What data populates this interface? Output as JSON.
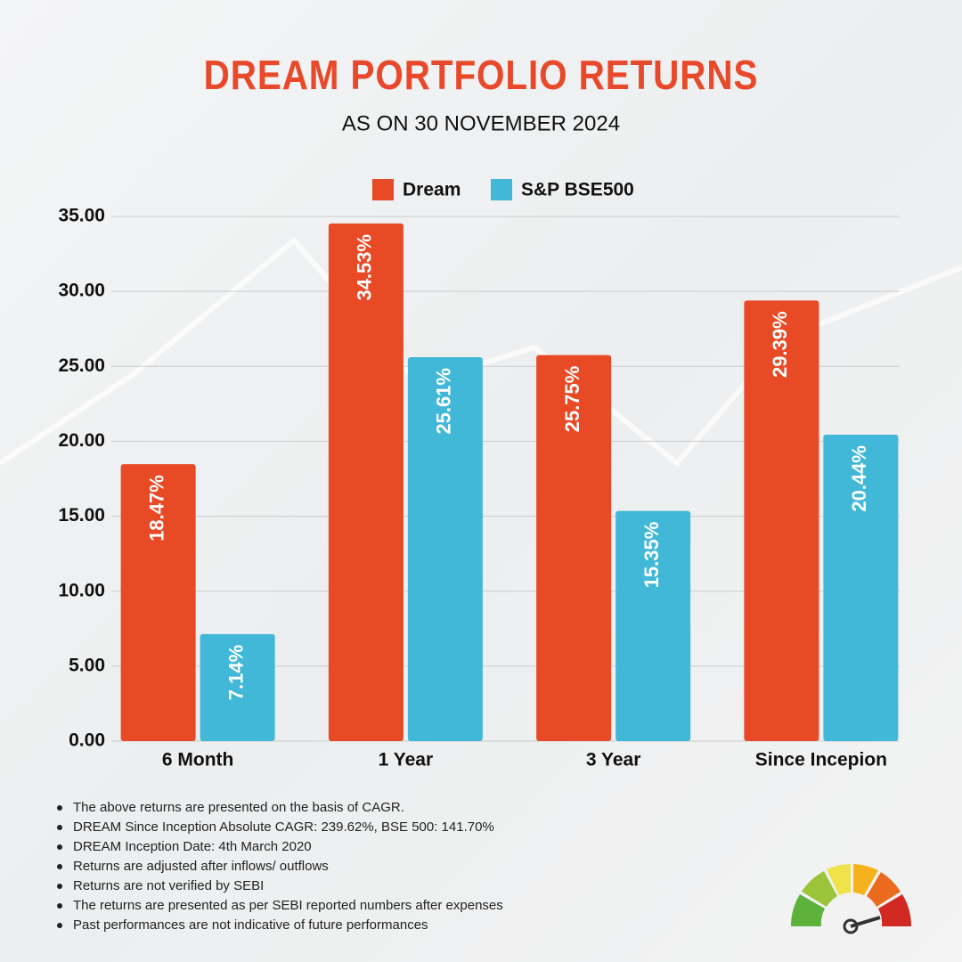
{
  "chart_data": {
    "type": "bar",
    "title": "DREAM PORTFOLIO RETURNS",
    "subtitle": "AS ON 30 NOVEMBER 2024",
    "categories": [
      "6 Month",
      "1 Year",
      "3 Year",
      "Since Incepion"
    ],
    "series": [
      {
        "name": "Dream",
        "color": "#e84a25",
        "values": [
          18.47,
          34.53,
          25.75,
          29.39
        ],
        "value_labels": [
          "18.47%",
          "34.53%",
          "25.75%",
          "29.39%"
        ]
      },
      {
        "name": "S&P BSE500",
        "color": "#42b8d8",
        "values": [
          7.14,
          25.61,
          15.35,
          20.44
        ],
        "value_labels": [
          "7.14%",
          "25.61%",
          "15.35%",
          "20.44%"
        ]
      }
    ],
    "ylim": [
      0,
      35
    ],
    "yticks": [
      {
        "value": 0,
        "label": "0.00"
      },
      {
        "value": 5,
        "label": "5.00"
      },
      {
        "value": 10,
        "label": "10.00"
      },
      {
        "value": 15,
        "label": "15.00"
      },
      {
        "value": 20,
        "label": "20.00"
      },
      {
        "value": 25,
        "label": "25.00"
      },
      {
        "value": 30,
        "label": "30.00"
      },
      {
        "value": 35,
        "label": "35.00"
      }
    ],
    "grid": true
  },
  "notes": [
    "The above returns are presented on the basis of CAGR.",
    "DREAM Since Inception Absolute CAGR: 239.62%, BSE 500: 141.70%",
    "DREAM Inception Date: 4th March 2020",
    "Returns are adjusted after inflows/ outflows",
    "Returns are not verified by SEBI",
    "The returns are presented as per SEBI reported numbers after expenses",
    "Past performances are not indicative of future performances"
  ]
}
